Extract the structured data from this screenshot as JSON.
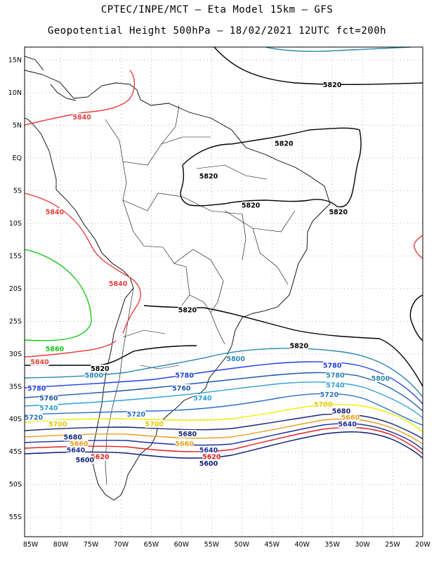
{
  "title_line1": "CPTEC/INPE/MCT –  Eta Model 15km – GFS",
  "title_line2": "Geopotential Height 500hPa – 18/02/2021 12UTC fct=200h",
  "lat_ticks": [
    "15N",
    "10N",
    "5N",
    "EQ",
    "5S",
    "10S",
    "15S",
    "20S",
    "25S",
    "30S",
    "35S",
    "40S",
    "45S",
    "50S",
    "55S"
  ],
  "lon_ticks": [
    "85W",
    "80W",
    "75W",
    "70W",
    "65W",
    "60W",
    "55W",
    "50W",
    "45W",
    "40W",
    "35W",
    "30W",
    "25W",
    "20W"
  ],
  "map": {
    "lon_range": [
      -86,
      -20
    ],
    "lat_range": [
      -58,
      17
    ],
    "grid": "dotted",
    "contour_colors": {
      "5580": "#000050",
      "5600": "#0a1e78",
      "5620": "#e02020",
      "5640": "#1e2ea0",
      "5660": "#e8a020",
      "5680": "#182878",
      "5700": "#f0f000",
      "5720": "#2a70c8",
      "5740": "#30a0d8",
      "5760": "#1e5aa8",
      "5780": "#2040e0",
      "5800": "#2a88b0",
      "5820": "#000000",
      "5840": "#e84040",
      "5860": "#18c818"
    },
    "contour_labels": [
      {
        "text": "5820",
        "lon": -35,
        "lat": 11,
        "color": "#000000"
      },
      {
        "text": "5840",
        "lon": -76.5,
        "lat": 6,
        "color": "#e84040"
      },
      {
        "text": "5820",
        "lon": -43,
        "lat": 2,
        "color": "#000000"
      },
      {
        "text": "5820",
        "lon": -55.5,
        "lat": -3,
        "color": "#000000"
      },
      {
        "text": "5820",
        "lon": -48.5,
        "lat": -7.5,
        "color": "#000000"
      },
      {
        "text": "5820",
        "lon": -34,
        "lat": -8.5,
        "color": "#000000"
      },
      {
        "text": "5840",
        "lon": -81,
        "lat": -8.5,
        "color": "#e84040"
      },
      {
        "text": "5840",
        "lon": -70.5,
        "lat": -19.5,
        "color": "#e84040"
      },
      {
        "text": "5820",
        "lon": -59,
        "lat": -23.5,
        "color": "#000000"
      },
      {
        "text": "5820",
        "lon": -40.5,
        "lat": -29,
        "color": "#000000"
      },
      {
        "text": "5860",
        "lon": -81,
        "lat": -29.5,
        "color": "#18c818"
      },
      {
        "text": "5840",
        "lon": -83.5,
        "lat": -31.5,
        "color": "#e84040"
      },
      {
        "text": "5820",
        "lon": -73.5,
        "lat": -32.5,
        "color": "#000000"
      },
      {
        "text": "5800",
        "lon": -51,
        "lat": -31,
        "color": "#2a88b0"
      },
      {
        "text": "5800",
        "lon": -74.5,
        "lat": -33.5,
        "color": "#2a88b0"
      },
      {
        "text": "5780",
        "lon": -59.5,
        "lat": -33.5,
        "color": "#2040e0"
      },
      {
        "text": "5780",
        "lon": -35,
        "lat": -32,
        "color": "#2040e0"
      },
      {
        "text": "5780",
        "lon": -34.5,
        "lat": -33.5,
        "color": "#2a88b0"
      },
      {
        "text": "5800",
        "lon": -27,
        "lat": -34,
        "color": "#2a88b0"
      },
      {
        "text": "5740",
        "lon": -34.5,
        "lat": -35,
        "color": "#30a0d8"
      },
      {
        "text": "5780",
        "lon": -84,
        "lat": -35.5,
        "color": "#2040e0"
      },
      {
        "text": "5760",
        "lon": -60,
        "lat": -35.5,
        "color": "#1e5aa8"
      },
      {
        "text": "5720",
        "lon": -35.5,
        "lat": -36.5,
        "color": "#2a70c8"
      },
      {
        "text": "5760",
        "lon": -82,
        "lat": -37,
        "color": "#1e5aa8"
      },
      {
        "text": "5740",
        "lon": -56.5,
        "lat": -37,
        "color": "#30a0d8"
      },
      {
        "text": "5740",
        "lon": -82,
        "lat": -38.5,
        "color": "#30a0d8"
      },
      {
        "text": "5700",
        "lon": -36.5,
        "lat": -38,
        "color": "#e8c800"
      },
      {
        "text": "5720",
        "lon": -67.5,
        "lat": -39.5,
        "color": "#2a70c8"
      },
      {
        "text": "5680",
        "lon": -33.5,
        "lat": -39,
        "color": "#182878"
      },
      {
        "text": "5720",
        "lon": -84.5,
        "lat": -40,
        "color": "#2a70c8"
      },
      {
        "text": "5660",
        "lon": -32,
        "lat": -40,
        "color": "#e8a020"
      },
      {
        "text": "5640",
        "lon": -32.5,
        "lat": -41,
        "color": "#1e2ea0"
      },
      {
        "text": "5700",
        "lon": -80.5,
        "lat": -41,
        "color": "#e8c800"
      },
      {
        "text": "5700",
        "lon": -64.5,
        "lat": -41,
        "color": "#e8c800"
      },
      {
        "text": "5680",
        "lon": -59,
        "lat": -42.5,
        "color": "#182878"
      },
      {
        "text": "5680",
        "lon": -78,
        "lat": -43,
        "color": "#182878"
      },
      {
        "text": "5660",
        "lon": -59.5,
        "lat": -44,
        "color": "#e8a020"
      },
      {
        "text": "5660",
        "lon": -77,
        "lat": -44,
        "color": "#e8a020"
      },
      {
        "text": "5640",
        "lon": -55.5,
        "lat": -45,
        "color": "#1e2ea0"
      },
      {
        "text": "5640",
        "lon": -77.5,
        "lat": -45,
        "color": "#1e2ea0"
      },
      {
        "text": "5620",
        "lon": -73.5,
        "lat": -46,
        "color": "#e02020"
      },
      {
        "text": "5620",
        "lon": -55,
        "lat": -46,
        "color": "#e02020"
      },
      {
        "text": "5600",
        "lon": -76,
        "lat": -46.5,
        "color": "#0a1e78"
      },
      {
        "text": "5600",
        "lon": -55.5,
        "lat": -47,
        "color": "#0a1e78"
      }
    ]
  }
}
